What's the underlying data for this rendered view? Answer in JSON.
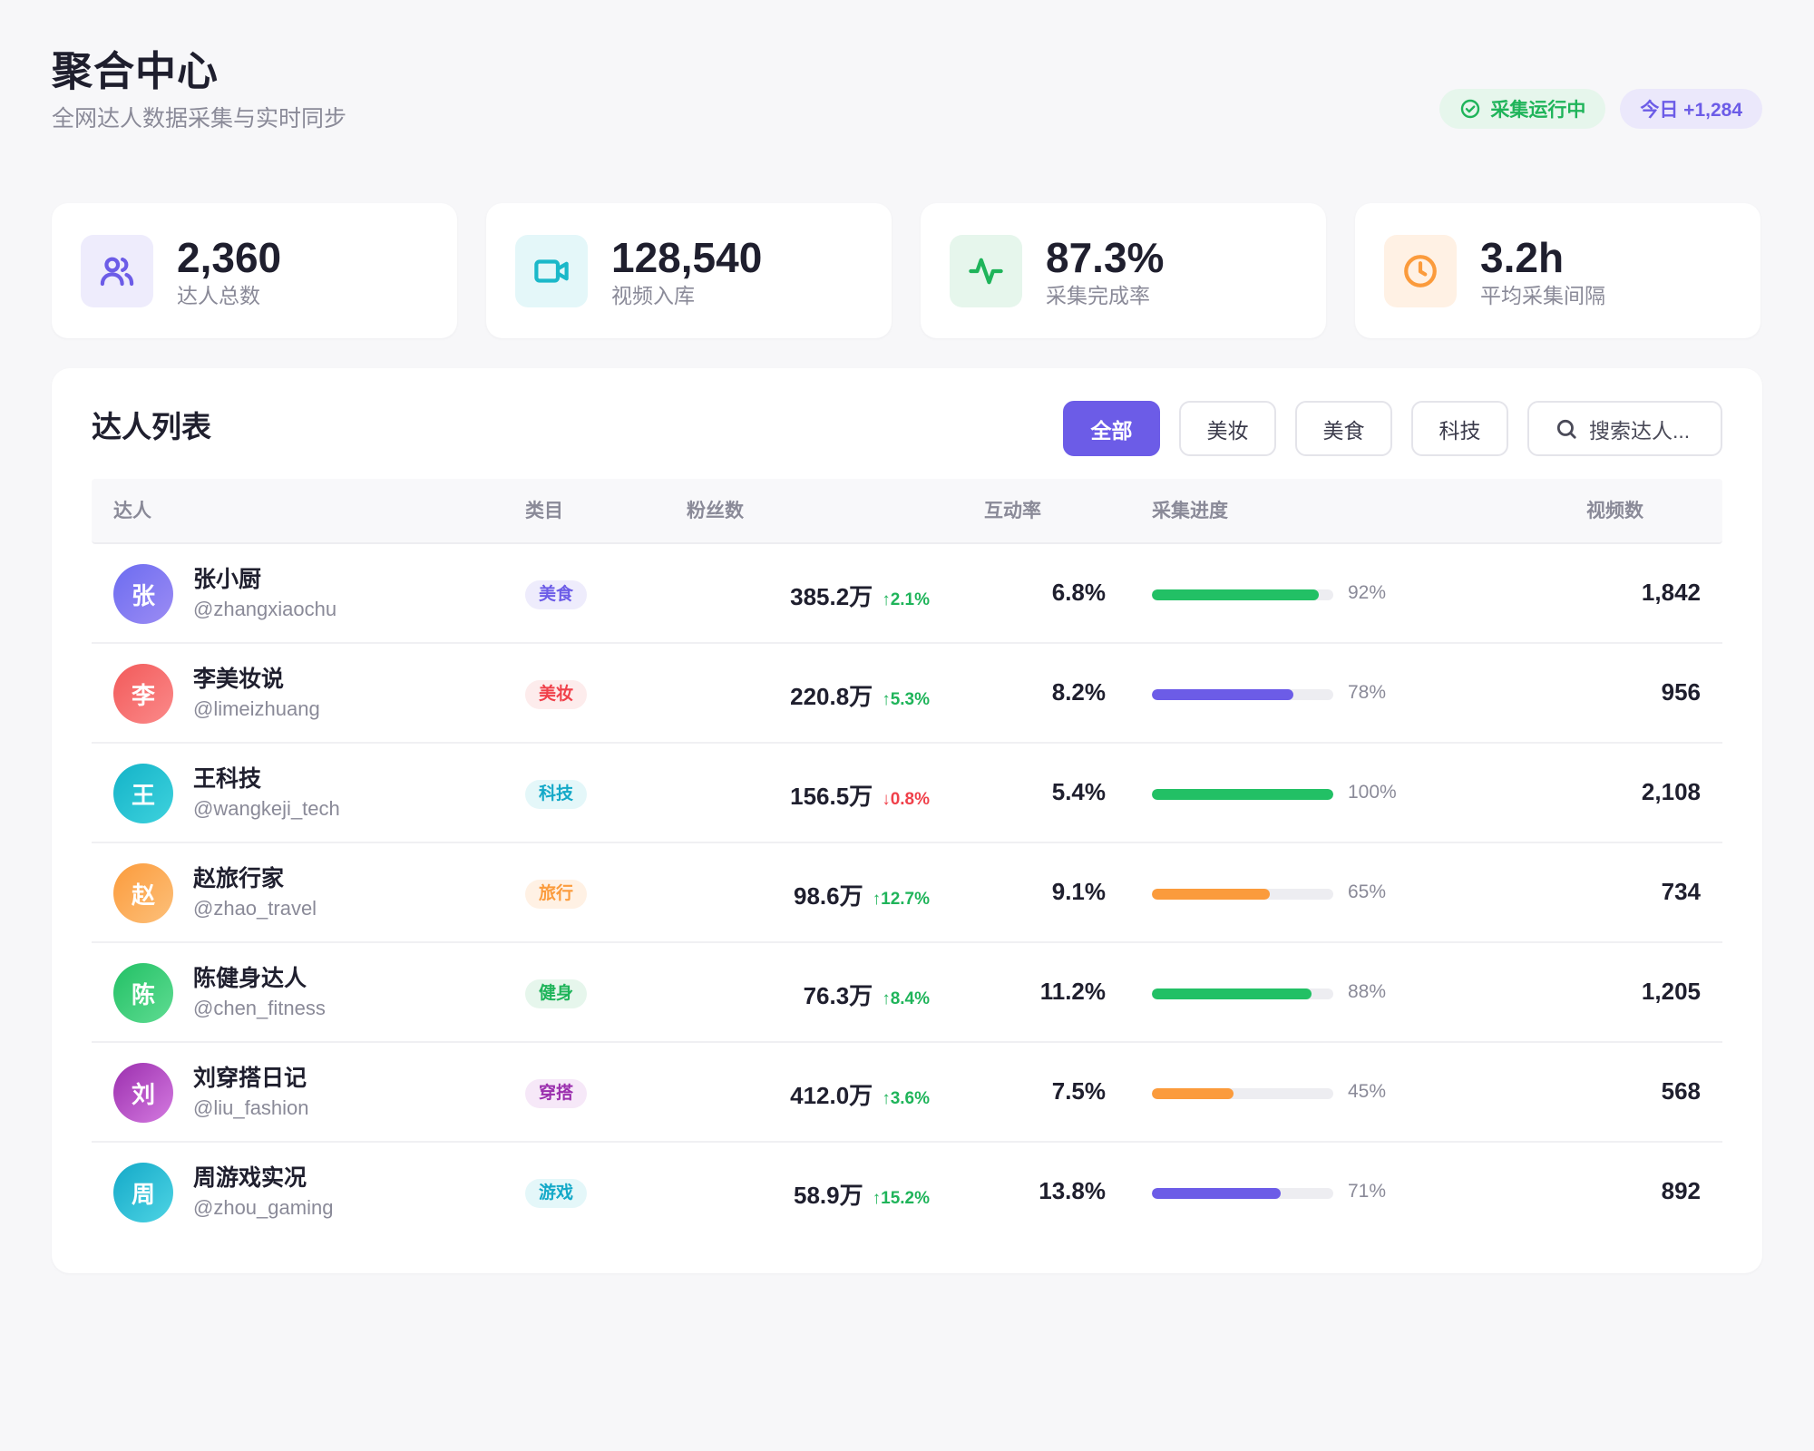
{
  "header": {
    "title": "聚合中心",
    "subtitle": "全网达人数据采集与实时同步",
    "status_badge": "采集运行中",
    "today_badge": "今日 +1,284"
  },
  "stats": [
    {
      "value": "2,360",
      "label": "达人总数",
      "icon": "users-icon",
      "accent": "#6c5ce7",
      "bg": "#eeecfc"
    },
    {
      "value": "128,540",
      "label": "视频入库",
      "icon": "video-icon",
      "accent": "#1bb8c9",
      "bg": "#e4f7f9"
    },
    {
      "value": "87.3%",
      "label": "采集完成率",
      "icon": "activity-icon",
      "accent": "#1fb45a",
      "bg": "#e6f6ec"
    },
    {
      "value": "3.2h",
      "label": "平均采集间隔",
      "icon": "clock-icon",
      "accent": "#fb9b3c",
      "bg": "#fff1e4"
    }
  ],
  "list": {
    "title": "达人列表",
    "filters": [
      "全部",
      "美妆",
      "美食",
      "科技"
    ],
    "active_filter": "全部",
    "search_placeholder": "搜索达人...",
    "columns": [
      "达人",
      "类目",
      "粉丝数",
      "互动率",
      "采集进度",
      "视频数"
    ],
    "rows": [
      {
        "initial": "张",
        "name": "张小厨",
        "handle": "@zhangxiaochu",
        "category": "美食",
        "fans": "385.2万",
        "delta": "2.1%",
        "trend": "up",
        "engagement": "6.8%",
        "progress": 92,
        "progress_text": "92%",
        "videos": "1,842"
      },
      {
        "initial": "李",
        "name": "李美妆说",
        "handle": "@limeizhuang",
        "category": "美妆",
        "fans": "220.8万",
        "delta": "5.3%",
        "trend": "up",
        "engagement": "8.2%",
        "progress": 78,
        "progress_text": "78%",
        "videos": "956"
      },
      {
        "initial": "王",
        "name": "王科技",
        "handle": "@wangkeji_tech",
        "category": "科技",
        "fans": "156.5万",
        "delta": "0.8%",
        "trend": "down",
        "engagement": "5.4%",
        "progress": 100,
        "progress_text": "100%",
        "videos": "2,108"
      },
      {
        "initial": "赵",
        "name": "赵旅行家",
        "handle": "@zhao_travel",
        "category": "旅行",
        "fans": "98.6万",
        "delta": "12.7%",
        "trend": "up",
        "engagement": "9.1%",
        "progress": 65,
        "progress_text": "65%",
        "videos": "734"
      },
      {
        "initial": "陈",
        "name": "陈健身达人",
        "handle": "@chen_fitness",
        "category": "健身",
        "fans": "76.3万",
        "delta": "8.4%",
        "trend": "up",
        "engagement": "11.2%",
        "progress": 88,
        "progress_text": "88%",
        "videos": "1,205"
      },
      {
        "initial": "刘",
        "name": "刘穿搭日记",
        "handle": "@liu_fashion",
        "category": "穿搭",
        "fans": "412.0万",
        "delta": "3.6%",
        "trend": "up",
        "engagement": "7.5%",
        "progress": 45,
        "progress_text": "45%",
        "videos": "568"
      },
      {
        "initial": "周",
        "name": "周游戏实况",
        "handle": "@zhou_gaming",
        "category": "游戏",
        "fans": "58.9万",
        "delta": "15.2%",
        "trend": "up",
        "engagement": "13.8%",
        "progress": 71,
        "progress_text": "71%",
        "videos": "892"
      }
    ]
  },
  "colors": {
    "primary": "#6c5ce7",
    "success": "#1fb45a",
    "danger": "#f0404a",
    "warning": "#fb9b3c",
    "avatars": {
      "张": [
        "#6c6cf0",
        "#9c8cf4"
      ],
      "李": [
        "#f25a5a",
        "#fb8a8a"
      ],
      "王": [
        "#14b3c8",
        "#3ed2dd"
      ],
      "赵": [
        "#fb9b3c",
        "#fdc07a"
      ],
      "陈": [
        "#22c065",
        "#5fdc92"
      ],
      "刘": [
        "#9b2fae",
        "#d47ae0"
      ],
      "周": [
        "#14a9c8",
        "#4ed4e4"
      ]
    },
    "categories": {
      "美食": {
        "bg": "#eeecfc",
        "fg": "#6c5ce7"
      },
      "美妆": {
        "bg": "#fdecec",
        "fg": "#f0404a"
      },
      "科技": {
        "bg": "#e4f7f9",
        "fg": "#14a9c8"
      },
      "旅行": {
        "bg": "#fff1e4",
        "fg": "#fb9b3c"
      },
      "健身": {
        "bg": "#e6f6ec",
        "fg": "#1fb45a"
      },
      "穿搭": {
        "bg": "#f6e8f8",
        "fg": "#9b2fae"
      },
      "游戏": {
        "bg": "#e4f7f9",
        "fg": "#14a9c8"
      }
    },
    "progress_fill": [
      "#22c065",
      "#6c5ce7",
      "#22c065",
      "#fb9b3c",
      "#22c065",
      "#fb9b3c",
      "#6c5ce7"
    ]
  }
}
